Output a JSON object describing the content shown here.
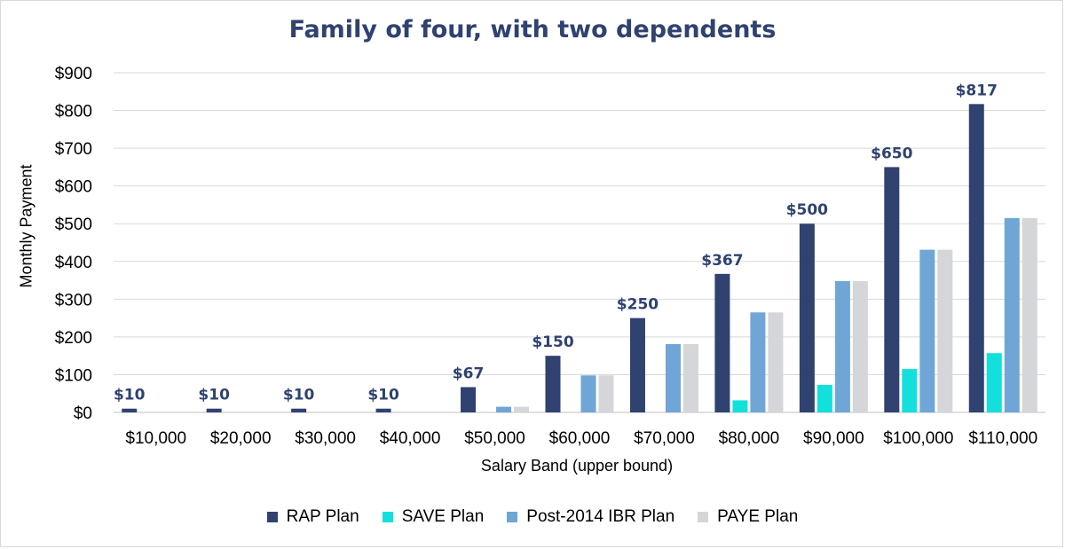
{
  "chart_data": {
    "type": "bar",
    "title": "Family of four, with two dependents",
    "xlabel": "Salary Band (upper bound)",
    "ylabel": "Monthly Payment",
    "categories": [
      "$10,000",
      "$20,000",
      "$30,000",
      "$40,000",
      "$50,000",
      "$60,000",
      "$70,000",
      "$80,000",
      "$90,000",
      "$100,000",
      "$110,000"
    ],
    "yticks": [
      "$0",
      "$100",
      "$200",
      "$300",
      "$400",
      "$500",
      "$600",
      "$700",
      "$800",
      "$900"
    ],
    "ylim": [
      0,
      900
    ],
    "grid": true,
    "legend_position": "bottom",
    "series": [
      {
        "name": "RAP Plan",
        "color": "#2f4270",
        "values": [
          10,
          10,
          10,
          10,
          67,
          150,
          250,
          367,
          500,
          650,
          817
        ],
        "data_labels": [
          "$10",
          "$10",
          "$10",
          "$10",
          "$67",
          "$150",
          "$250",
          "$367",
          "$500",
          "$650",
          "$817"
        ]
      },
      {
        "name": "SAVE Plan",
        "color": "#13e0dc",
        "values": [
          0,
          0,
          0,
          0,
          0,
          0,
          0,
          32,
          73,
          115,
          157
        ]
      },
      {
        "name": "Post-2014 IBR Plan",
        "color": "#6fa6d6",
        "values": [
          0,
          0,
          0,
          0,
          15,
          98,
          181,
          265,
          348,
          431,
          515
        ]
      },
      {
        "name": "PAYE Plan",
        "color": "#d4d6da",
        "values": [
          0,
          0,
          0,
          0,
          15,
          98,
          181,
          265,
          348,
          431,
          515
        ]
      }
    ]
  }
}
